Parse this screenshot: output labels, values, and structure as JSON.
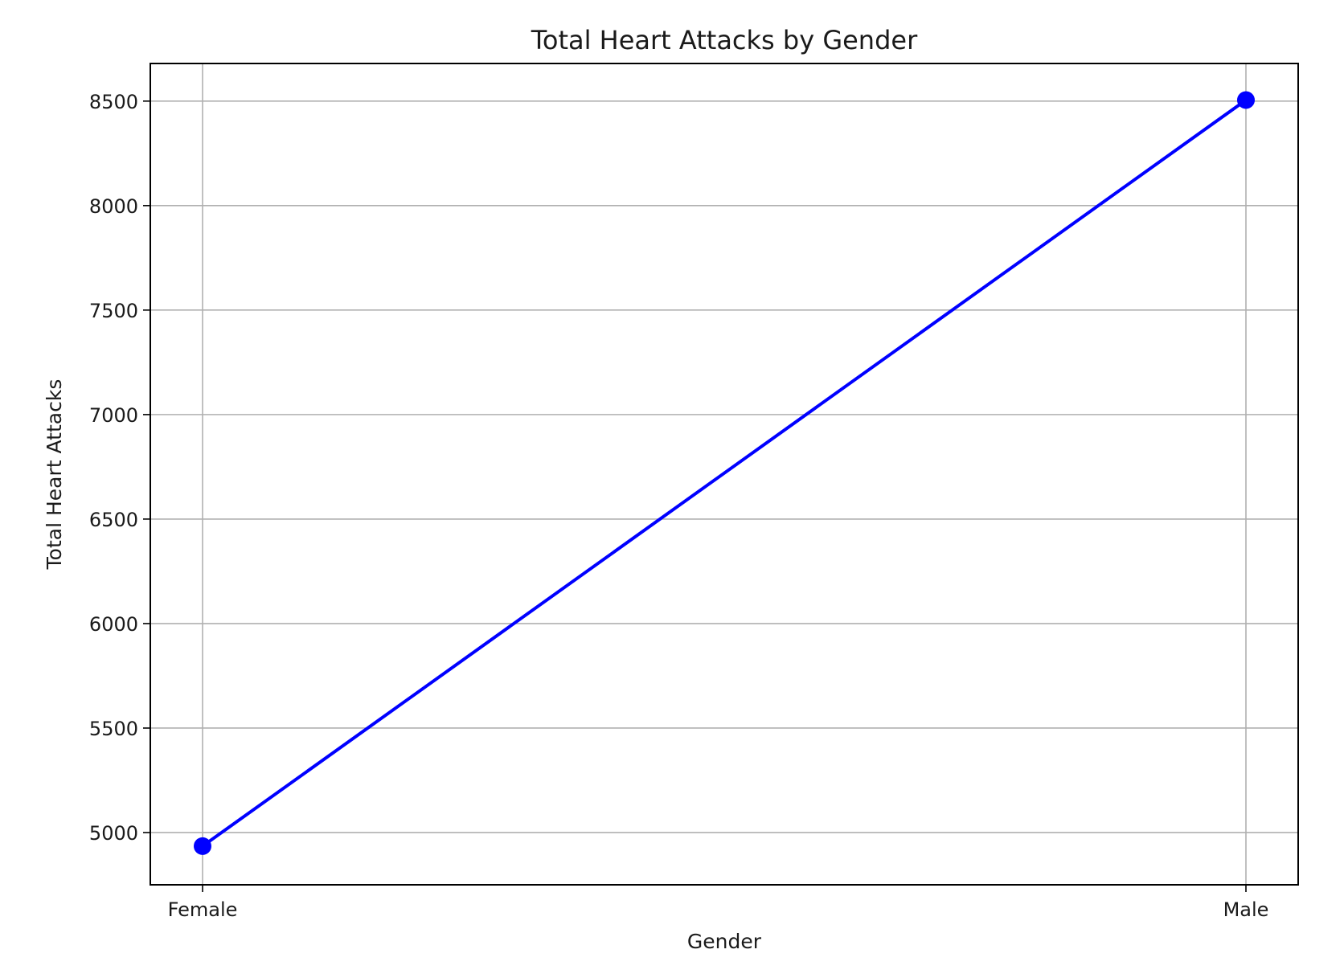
{
  "chart_data": {
    "type": "line",
    "title": "Total Heart Attacks by Gender",
    "xlabel": "Gender",
    "ylabel": "Total Heart Attacks",
    "categories": [
      "Female",
      "Male"
    ],
    "series": [
      {
        "values": [
          4935,
          8505
        ],
        "color": "#0000ff",
        "marker": "circle"
      }
    ],
    "ylim": [
      4750,
      8680
    ],
    "yticks": [
      5000,
      5500,
      6000,
      6500,
      7000,
      7500,
      8000,
      8500
    ],
    "grid": true,
    "legend": "none"
  }
}
